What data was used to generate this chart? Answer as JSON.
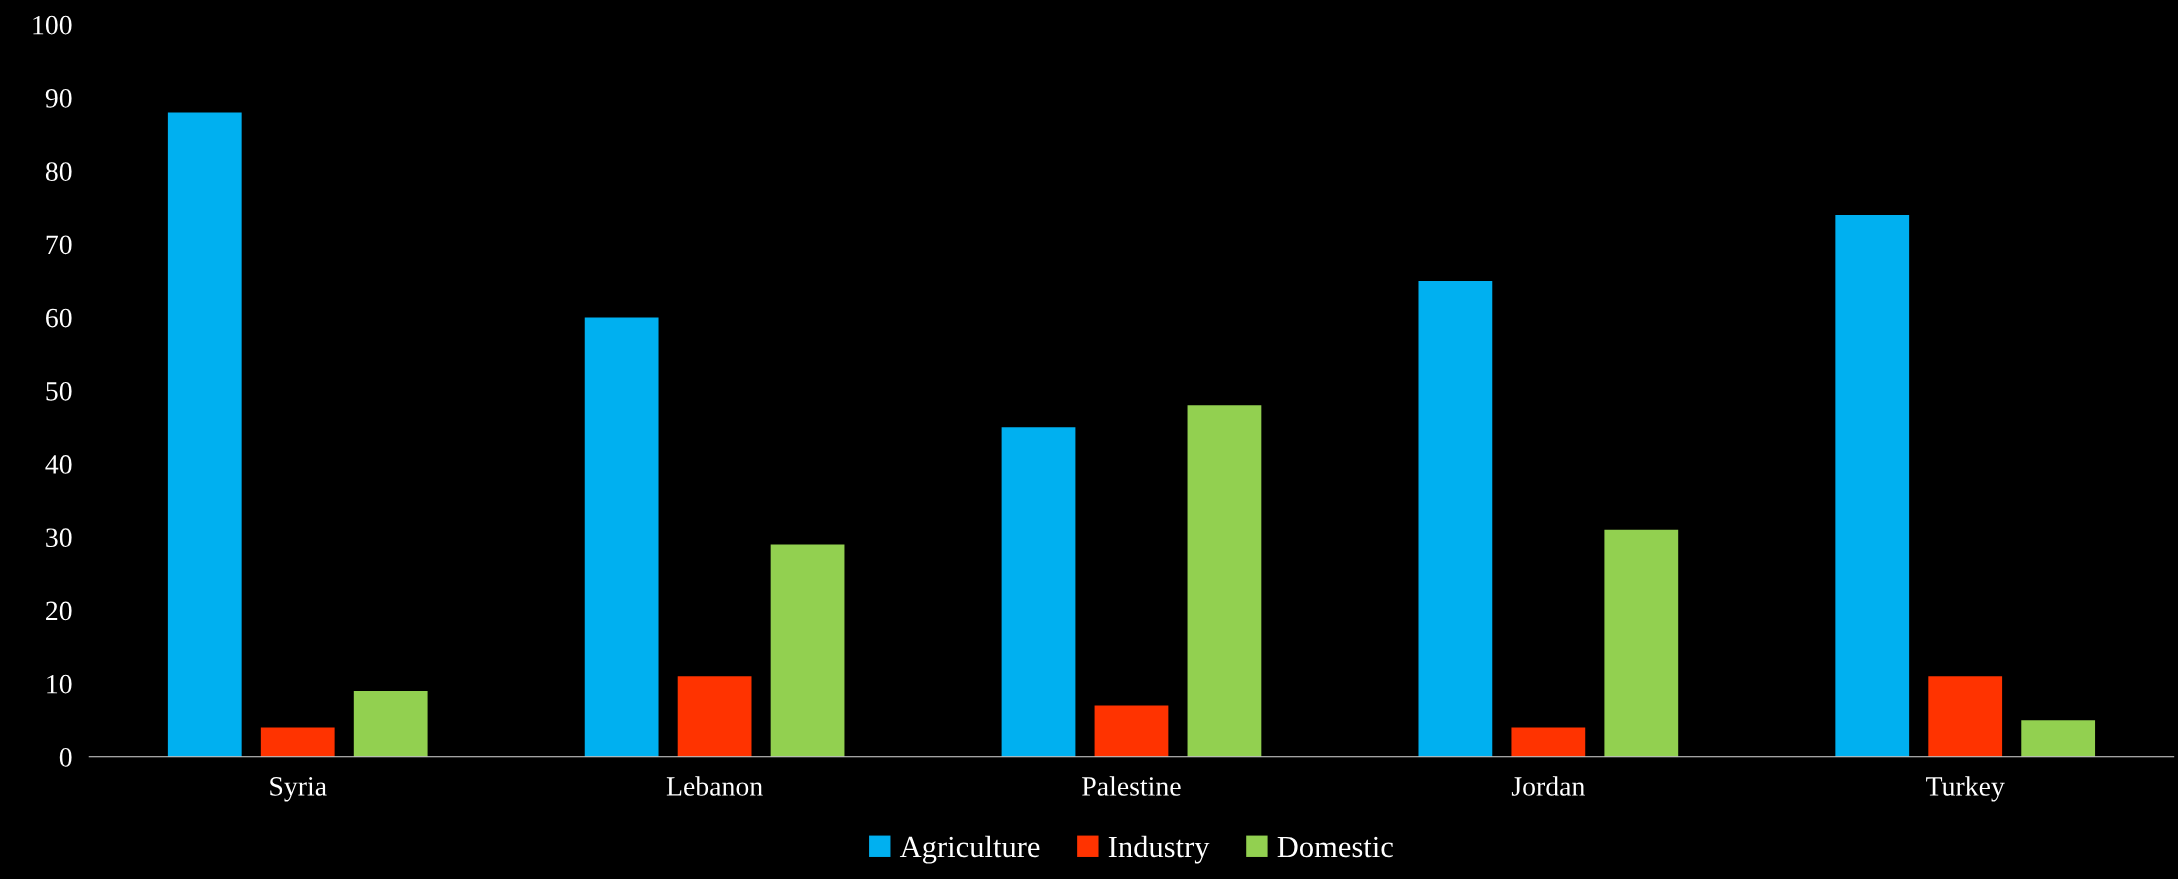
{
  "chart_data": {
    "type": "bar",
    "categories": [
      "Syria",
      "Lebanon",
      "Palestine",
      "Jordan",
      "Turkey"
    ],
    "series": [
      {
        "name": "Agriculture",
        "color": "#00b0f0",
        "values": [
          88,
          60,
          45,
          65,
          74
        ]
      },
      {
        "name": "Industry",
        "color": "#ff3300",
        "values": [
          4,
          11,
          7,
          4,
          11
        ]
      },
      {
        "name": "Domestic",
        "color": "#92d050",
        "values": [
          9,
          29,
          48,
          31,
          5
        ]
      }
    ],
    "ylim": [
      0,
      100
    ],
    "yticks": [
      0,
      10,
      20,
      30,
      40,
      50,
      60,
      70,
      80,
      90,
      100
    ],
    "grid": false,
    "legend": "bottom"
  }
}
